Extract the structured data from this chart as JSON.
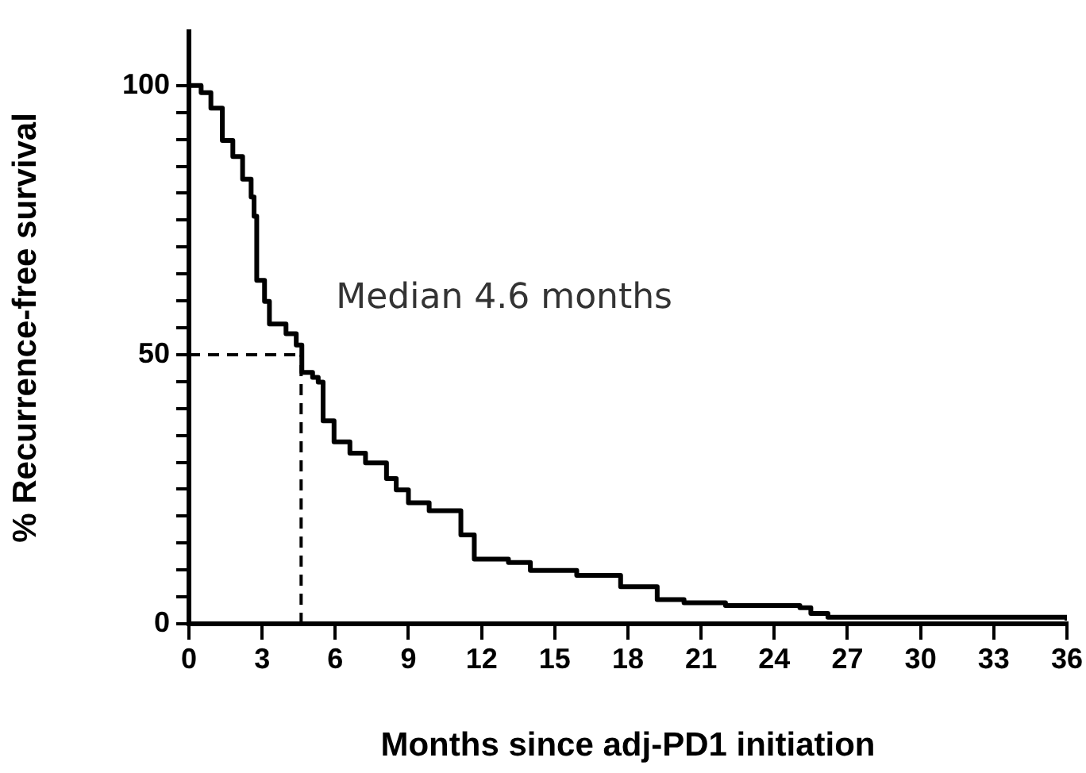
{
  "chart_data": {
    "type": "step",
    "xlabel": "Months since adj-PD1 initiation",
    "ylabel": "% Recurrence-free survival",
    "series": [
      {
        "color": "#000000",
        "x": [
          0,
          0.5,
          0.9,
          1.37,
          1.8,
          2.2,
          2.55,
          2.67,
          2.78,
          3.1,
          3.3,
          3.98,
          4.4,
          4.63,
          5.07,
          5.3,
          5.5,
          5.95,
          6.6,
          7.24,
          8.1,
          8.5,
          9.0,
          9.85,
          11.15,
          11.7,
          13.1,
          14,
          15.9,
          17.7,
          19.2,
          20.3,
          22,
          25.05,
          25.5,
          26.2,
          36
        ],
        "values": [
          100,
          98.7,
          95.8,
          89.8,
          86.8,
          82.6,
          79.3,
          75.7,
          63.8,
          59.9,
          55.7,
          53.9,
          51.8,
          46.7,
          45.8,
          44.9,
          37.7,
          33.8,
          31.7,
          29.9,
          27,
          24.9,
          22.5,
          21,
          16.5,
          12,
          11.4,
          9.9,
          9,
          6.9,
          4.5,
          3.9,
          3.4,
          3,
          1.9,
          1.2,
          0.6
        ]
      }
    ],
    "xlim": [
      0,
      36
    ],
    "xticks": [
      0,
      3,
      6,
      9,
      12,
      15,
      18,
      21,
      24,
      27,
      30,
      33,
      36
    ],
    "ylim": [
      0,
      110
    ],
    "yticks": [
      0,
      {
        "value": 5,
        "label": null
      },
      {
        "value": 10,
        "label": null
      },
      {
        "value": 15,
        "label": null
      },
      {
        "value": 20,
        "label": null
      },
      {
        "value": 25,
        "label": null
      },
      {
        "value": 30,
        "label": null
      },
      {
        "value": 35,
        "label": null
      },
      {
        "value": 40,
        "label": null
      },
      {
        "value": 45,
        "label": null
      },
      50,
      {
        "value": 55,
        "label": null
      },
      {
        "value": 60,
        "label": null
      },
      {
        "value": 65,
        "label": null
      },
      {
        "value": 70,
        "label": null
      },
      {
        "value": 75,
        "label": null
      },
      {
        "value": 80,
        "label": null
      },
      {
        "value": 85,
        "label": null
      },
      {
        "value": 90,
        "label": null
      },
      {
        "value": 95,
        "label": null
      },
      100
    ],
    "ref_lines": [
      {
        "axis": "y",
        "value": 50,
        "line_style": "dashed"
      },
      {
        "axis": "x",
        "value": 4.6,
        "line_style": "dashed"
      }
    ],
    "annotations": [
      {
        "text": "Median 4.6 months",
        "x": 4.6,
        "y": 50
      }
    ],
    "grid": false,
    "legend": false,
    "marker": "none",
    "line_style": "solid"
  }
}
